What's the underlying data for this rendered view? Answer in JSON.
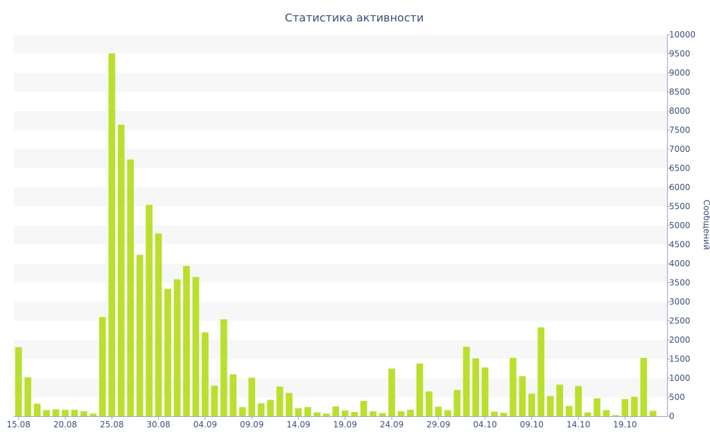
{
  "colors": {
    "bar": "#b9e02e",
    "band": "#f7f7f7",
    "text": "#3a4f7a",
    "axis": "#9aa6bf"
  },
  "chart_data": {
    "type": "bar",
    "title": "Статистика активности",
    "xlabel": "",
    "ylabel": "Сообщений",
    "y_axis_position": "right",
    "ylim": [
      0,
      10000
    ],
    "y_ticks": [
      0,
      500,
      1000,
      1500,
      2000,
      2500,
      3000,
      3500,
      4000,
      4500,
      5000,
      5500,
      6000,
      6500,
      7000,
      7500,
      8000,
      8500,
      9000,
      9500,
      10000
    ],
    "x_tick_labels": [
      "15.08",
      "20.08",
      "25.08",
      "30.08",
      "04.09",
      "09.09",
      "14.09",
      "19.09",
      "24.09",
      "29.09",
      "04.10",
      "09.10",
      "14.10",
      "19.10"
    ],
    "categories": [
      "15.08",
      "16.08",
      "17.08",
      "18.08",
      "19.08",
      "20.08",
      "21.08",
      "22.08",
      "23.08",
      "24.08",
      "25.08",
      "26.08",
      "27.08",
      "28.08",
      "29.08",
      "30.08",
      "31.08",
      "01.09",
      "02.09",
      "03.09",
      "04.09",
      "05.09",
      "06.09",
      "07.09",
      "08.09",
      "09.09",
      "10.09",
      "11.09",
      "12.09",
      "13.09",
      "14.09",
      "15.09",
      "16.09",
      "17.09",
      "18.09",
      "19.09",
      "20.09",
      "21.09",
      "22.09",
      "23.09",
      "24.09",
      "25.09",
      "26.09",
      "27.09",
      "28.09",
      "29.09",
      "30.09",
      "01.10",
      "02.10",
      "03.10",
      "04.10",
      "05.10",
      "06.10",
      "07.10",
      "08.10",
      "09.10",
      "10.10",
      "11.10",
      "12.10",
      "13.10",
      "14.10",
      "15.10",
      "16.10",
      "17.10",
      "18.10",
      "19.10",
      "20.10",
      "21.10",
      "22.10",
      "23.10"
    ],
    "values": [
      1810,
      1020,
      330,
      160,
      180,
      170,
      170,
      130,
      70,
      2600,
      9510,
      7640,
      6730,
      4230,
      5540,
      4790,
      3340,
      3590,
      3940,
      3650,
      2200,
      800,
      2540,
      1100,
      240,
      1010,
      340,
      430,
      780,
      610,
      210,
      240,
      100,
      70,
      260,
      150,
      110,
      400,
      130,
      80,
      1250,
      130,
      170,
      1380,
      650,
      250,
      160,
      690,
      1820,
      1520,
      1280,
      120,
      90,
      1530,
      1050,
      590,
      2330,
      530,
      830,
      270,
      790,
      100,
      470,
      160,
      30,
      450,
      510,
      1530,
      140,
      0
    ]
  }
}
